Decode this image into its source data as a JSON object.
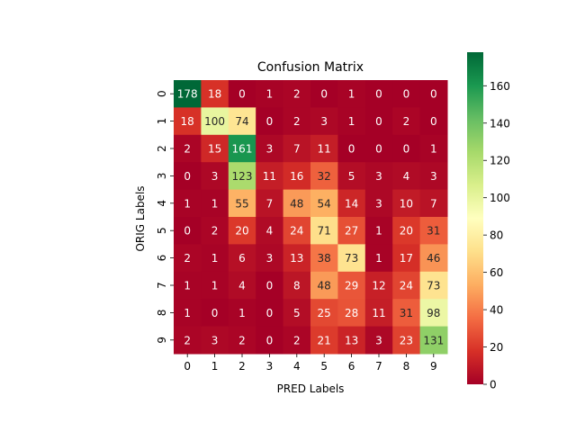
{
  "chart_data": {
    "type": "heatmap",
    "title": "Confusion Matrix",
    "xlabel": "PRED Labels",
    "ylabel": "ORIG Labels",
    "x_categories": [
      "0",
      "1",
      "2",
      "3",
      "4",
      "5",
      "6",
      "7",
      "8",
      "9"
    ],
    "y_categories": [
      "0",
      "1",
      "2",
      "3",
      "4",
      "5",
      "6",
      "7",
      "8",
      "9"
    ],
    "values": [
      [
        178,
        18,
        0,
        1,
        2,
        0,
        1,
        0,
        0,
        0
      ],
      [
        18,
        100,
        74,
        0,
        2,
        3,
        1,
        0,
        2,
        0
      ],
      [
        2,
        15,
        161,
        3,
        7,
        11,
        0,
        0,
        0,
        1
      ],
      [
        0,
        3,
        123,
        11,
        16,
        32,
        5,
        3,
        4,
        3
      ],
      [
        1,
        1,
        55,
        7,
        48,
        54,
        14,
        3,
        10,
        7
      ],
      [
        0,
        2,
        20,
        4,
        24,
        71,
        27,
        1,
        20,
        31
      ],
      [
        2,
        1,
        6,
        3,
        13,
        38,
        73,
        1,
        17,
        46
      ],
      [
        1,
        1,
        4,
        0,
        8,
        48,
        29,
        12,
        24,
        73
      ],
      [
        1,
        0,
        1,
        0,
        5,
        25,
        28,
        11,
        31,
        98
      ],
      [
        2,
        3,
        2,
        0,
        2,
        21,
        13,
        3,
        23,
        131
      ]
    ],
    "colormap": "RdYlGn",
    "colorbar": {
      "range": [
        0,
        178
      ],
      "ticks": [
        0,
        20,
        40,
        60,
        80,
        100,
        120,
        140,
        160
      ]
    },
    "annotations": true
  }
}
